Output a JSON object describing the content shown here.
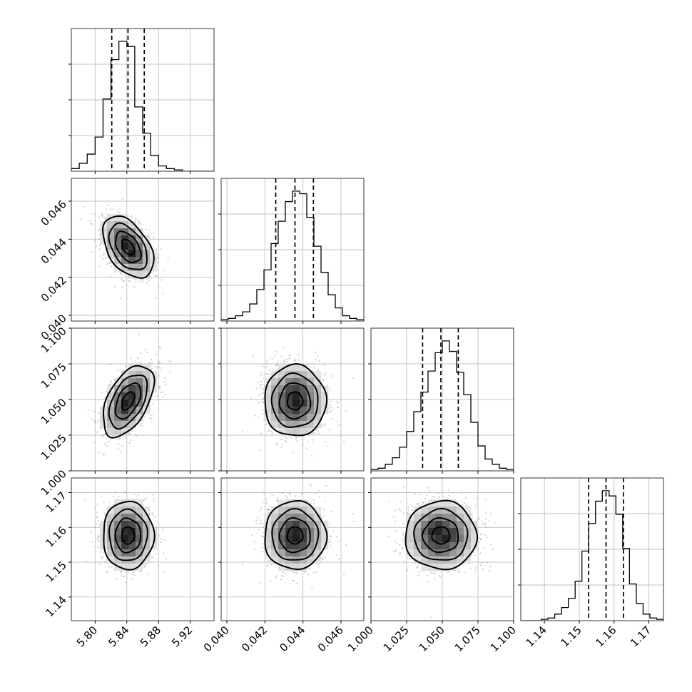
{
  "chart_data": {
    "type": "corner",
    "title": "",
    "params": [
      {
        "range": [
          5.77,
          5.95
        ],
        "ticks": [
          5.8,
          5.84,
          5.88,
          5.92
        ],
        "tick_labels": [
          "5.80",
          "5.84",
          "5.88",
          "5.92"
        ],
        "quantiles": [
          5.821,
          5.8415,
          5.862
        ],
        "hist": [
          0.02,
          0.06,
          0.13,
          0.26,
          0.55,
          0.85,
          0.99,
          0.95,
          0.49,
          0.29,
          0.12,
          0.04,
          0.02,
          0.01,
          0.0,
          0.0,
          0.0,
          0.0
        ]
      },
      {
        "range": [
          0.0397,
          0.0472
        ],
        "ticks": [
          0.04,
          0.042,
          0.044,
          0.046
        ],
        "tick_labels": [
          "0.040",
          "0.042",
          "0.044",
          "0.046"
        ],
        "quantiles": [
          0.04257,
          0.04358,
          0.04455
        ],
        "hist": [
          0.01,
          0.02,
          0.04,
          0.07,
          0.13,
          0.24,
          0.39,
          0.59,
          0.76,
          0.91,
          0.99,
          0.97,
          0.79,
          0.57,
          0.37,
          0.2,
          0.1,
          0.04,
          0.02,
          0.01
        ]
      },
      {
        "range": [
          1.0,
          1.1
        ],
        "ticks": [
          1.0,
          1.025,
          1.05,
          1.075,
          1.1
        ],
        "tick_labels": [
          "1.000",
          "1.025",
          "1.050",
          "1.075",
          "1.100"
        ],
        "quantiles": [
          1.0362,
          1.049,
          1.0612
        ],
        "hist": [
          0.01,
          0.02,
          0.05,
          0.1,
          0.18,
          0.3,
          0.45,
          0.6,
          0.76,
          0.9,
          0.99,
          0.91,
          0.75,
          0.58,
          0.37,
          0.19,
          0.09,
          0.05,
          0.02,
          0.01
        ]
      },
      {
        "range": [
          1.1332,
          1.1742
        ],
        "ticks": [
          1.14,
          1.15,
          1.16,
          1.17
        ],
        "tick_labels": [
          "1.14",
          "1.15",
          "1.16",
          "1.17"
        ],
        "quantiles": [
          1.1527,
          1.1577,
          1.1627
        ],
        "hist": [
          0.0,
          0.0,
          0.0,
          0.01,
          0.02,
          0.05,
          0.1,
          0.17,
          0.3,
          0.53,
          0.74,
          0.91,
          0.99,
          0.95,
          0.81,
          0.55,
          0.28,
          0.13,
          0.05,
          0.02,
          0.01
        ]
      }
    ],
    "density_panels": [
      {
        "x": 0,
        "y": 1,
        "mean": [
          5.8415,
          0.04358
        ],
        "sd": [
          0.016,
          0.00081
        ],
        "rho": -0.45
      },
      {
        "x": 0,
        "y": 2,
        "mean": [
          5.8415,
          1.049
        ],
        "sd": [
          0.016,
          0.0125
        ],
        "rho": 0.5
      },
      {
        "x": 1,
        "y": 2,
        "mean": [
          0.04358,
          1.049
        ],
        "sd": [
          0.00081,
          0.0125
        ],
        "rho": 0.0
      },
      {
        "x": 0,
        "y": 3,
        "mean": [
          5.8415,
          1.1577
        ],
        "sd": [
          0.016,
          0.0049
        ],
        "rho": 0.0
      },
      {
        "x": 1,
        "y": 3,
        "mean": [
          0.04358,
          1.1577
        ],
        "sd": [
          0.00081,
          0.0049
        ],
        "rho": 0.0
      },
      {
        "x": 2,
        "y": 3,
        "mean": [
          1.049,
          1.1577
        ],
        "sd": [
          0.0125,
          0.0049
        ],
        "rho": 0.0
      }
    ],
    "contour_levels_sigma": [
      0.5,
      1.0,
      1.5,
      2.0
    ],
    "grid": true,
    "quantile_lines": "dashed"
  }
}
